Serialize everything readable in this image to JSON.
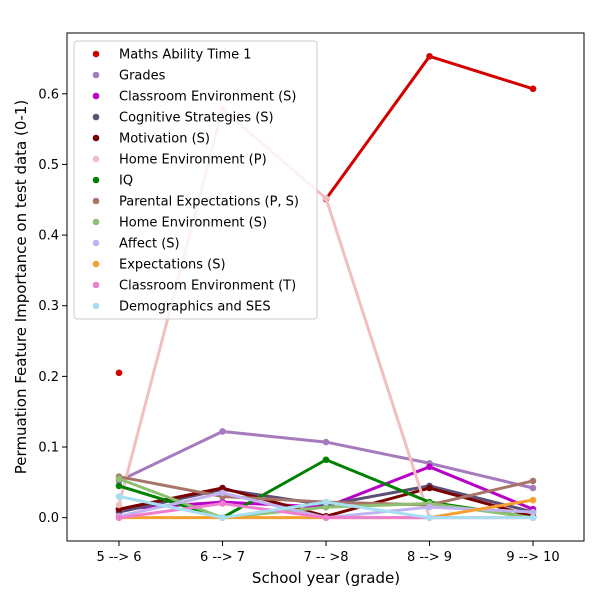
{
  "chart_data": {
    "type": "line",
    "xlabel": "School year (grade)",
    "ylabel": "Permuation Feature Importance on test data (0-1)",
    "categories": [
      "5 --> 6",
      "6 --> 7",
      "7 -- >8",
      "8 --> 9",
      "9 --> 10"
    ],
    "ylim": [
      -0.033,
      0.686
    ],
    "yticks": [
      0.0,
      0.1,
      0.2,
      0.3,
      0.4,
      0.5,
      0.6
    ],
    "ytick_labels": [
      "0.0",
      "0.1",
      "0.2",
      "0.3",
      "0.4",
      "0.5",
      "0.6"
    ],
    "grid": false,
    "legend_position": "top-left",
    "series": [
      {
        "name": "Maths Ability Time 1",
        "color": "#d40000",
        "values": [
          0.205,
          null,
          0.451,
          0.653,
          0.607
        ]
      },
      {
        "name": "Grades",
        "color": "#a57bbd",
        "values": [
          0.052,
          0.122,
          0.107,
          0.077,
          0.042
        ]
      },
      {
        "name": "Classroom Environment (S)",
        "color": "#b800c8",
        "values": [
          0.012,
          0.022,
          0.015,
          0.072,
          0.012
        ]
      },
      {
        "name": "Cognitive Strategies (S)",
        "color": "#5d4e78",
        "values": [
          0.008,
          0.04,
          0.018,
          0.045,
          0.008
        ]
      },
      {
        "name": "Motivation (S)",
        "color": "#7a0000",
        "values": [
          0.012,
          0.042,
          0.002,
          0.042,
          0.002
        ]
      },
      {
        "name": "Home Environment (P)",
        "color": "#f2bfc0",
        "values": [
          0.018,
          0.578,
          0.452,
          0.0,
          0.0
        ]
      },
      {
        "name": "IQ",
        "color": "#008000",
        "values": [
          0.045,
          0.0,
          0.082,
          0.022,
          0.0
        ]
      },
      {
        "name": "Parental Expectations (P, S)",
        "color": "#a87468",
        "values": [
          0.058,
          0.03,
          0.022,
          0.018,
          0.052
        ]
      },
      {
        "name": "Home Environment (S)",
        "color": "#8fbf70",
        "values": [
          0.055,
          0.0,
          0.015,
          0.02,
          0.0
        ]
      },
      {
        "name": "Affect (S)",
        "color": "#c0b4f0",
        "values": [
          0.002,
          0.035,
          0.0,
          0.015,
          0.008
        ]
      },
      {
        "name": "Expectations (S)",
        "color": "#f5a030",
        "values": [
          0.0,
          0.0,
          0.0,
          0.0,
          0.025
        ]
      },
      {
        "name": "Classroom Environment (T)",
        "color": "#f07ed0",
        "values": [
          0.0,
          0.02,
          0.0,
          0.0,
          0.0
        ]
      },
      {
        "name": "Demographics and SES",
        "color": "#a6dff2",
        "values": [
          0.03,
          0.0,
          0.022,
          0.0,
          0.0
        ]
      }
    ]
  }
}
